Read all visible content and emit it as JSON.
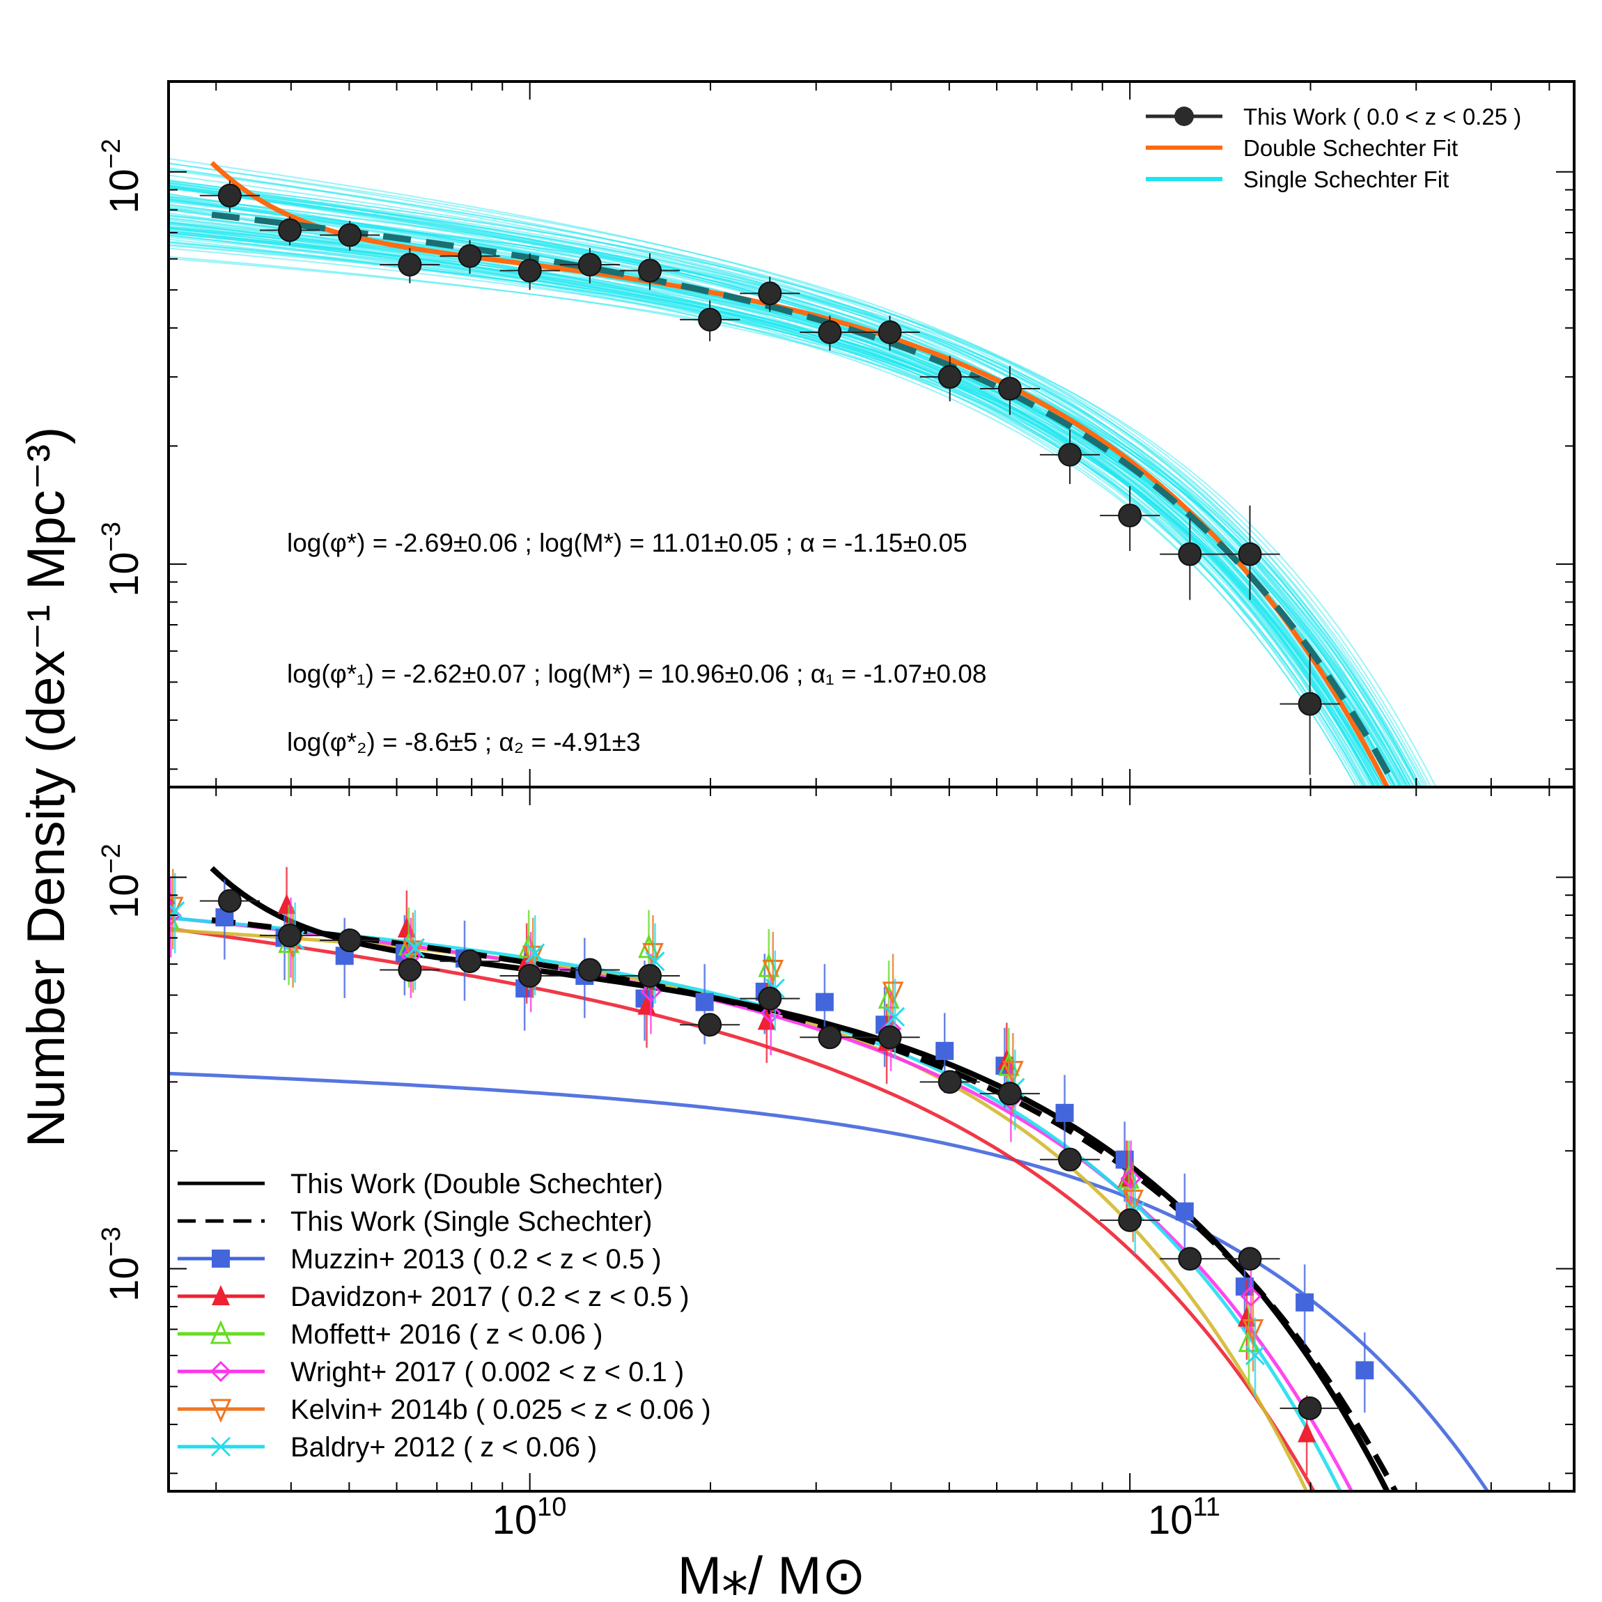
{
  "colors": {
    "this_work": "#2b2b2b",
    "double": "#ff6a12",
    "single": "#1ae6f0",
    "single_dash": "#1a6f73",
    "muzzin": "#4466dd",
    "davidzon": "#ee2233",
    "moffett": "#66dd22",
    "wright": "#ff33ee",
    "kelvin": "#ee7722",
    "baldry": "#22ddee",
    "moffett_line": "#d4b830"
  },
  "chart_data": [
    {
      "type": "line",
      "panel": "top",
      "xscale": "log",
      "yscale": "log",
      "xlim": [
        2500000000.0,
        550000000000.0
      ],
      "ylim": [
        0.00027,
        0.017
      ],
      "ylabel": "Number Density (dex⁻¹ Mpc⁻³)",
      "yticks": [
        {
          "base": "10",
          "exp": "−2",
          "value": 0.01
        },
        {
          "base": "10",
          "exp": "−3",
          "value": 0.001
        }
      ],
      "legend": [
        {
          "label": "This Work ( 0.0 < z < 0.25 )",
          "style": "points"
        },
        {
          "label": "Double Schechter Fit",
          "style": "double"
        },
        {
          "label": "Single Schechter Fit",
          "style": "single"
        }
      ],
      "annotations": [
        {
          "text": "log(φ*) = -2.69±0.06 ; log(M*) = 11.01±0.05 ; α = -1.15±0.05"
        },
        {
          "text": "log(φ*₁) = -2.62±0.07 ; log(M*) = 10.96±0.06 ; α₁ = -1.07±0.08"
        },
        {
          "text": "log(φ*₂) = -8.6±5 ; α₂ = -4.91±3"
        }
      ],
      "fits": {
        "single": {
          "log_phi": -2.69,
          "log_mstar": 11.01,
          "alpha": -1.15
        },
        "double": {
          "log_phi1": -2.62,
          "log_mstar": 10.96,
          "alpha1": -1.07,
          "log_phi2": -8.6,
          "alpha2": -4.91
        }
      },
      "series": [
        {
          "name": "This Work",
          "x_log": [
            9.5,
            9.6,
            9.7,
            9.8,
            9.9,
            10.0,
            10.1,
            10.2,
            10.3,
            10.4,
            10.5,
            10.6,
            10.7,
            10.8,
            10.9,
            11.0,
            11.1,
            11.2,
            11.3
          ],
          "y": [
            0.0087,
            0.0071,
            0.0069,
            0.0058,
            0.0061,
            0.0056,
            0.0058,
            0.0056,
            0.0042,
            0.0049,
            0.0039,
            0.0039,
            0.003,
            0.0028,
            0.0019,
            0.00133,
            0.00106,
            0.00106,
            0.00044
          ],
          "yerr_lo": [
            0.0008,
            0.0006,
            0.0006,
            0.0006,
            0.0006,
            0.0006,
            0.0006,
            0.0006,
            0.0005,
            0.0005,
            0.0004,
            0.0004,
            0.0004,
            0.0004,
            0.0003,
            0.00025,
            0.00025,
            0.00025,
            0.00015
          ],
          "yerr_hi": [
            0.0008,
            0.0006,
            0.0006,
            0.0006,
            0.0006,
            0.0006,
            0.0006,
            0.0006,
            0.0005,
            0.0005,
            0.0004,
            0.0004,
            0.0004,
            0.0004,
            0.0003,
            0.00025,
            0.00025,
            0.00035,
            0.00015
          ]
        }
      ]
    },
    {
      "type": "line",
      "panel": "bottom",
      "xscale": "log",
      "yscale": "log",
      "xlim": [
        2500000000.0,
        550000000000.0
      ],
      "ylim": [
        0.00027,
        0.017
      ],
      "xlabel": "M⁎/ M⊙",
      "xticks": [
        {
          "base": "10",
          "exp": "10",
          "value": 10000000000.0
        },
        {
          "base": "10",
          "exp": "11",
          "value": 100000000000.0
        }
      ],
      "yticks": [
        {
          "base": "10",
          "exp": "−2",
          "value": 0.01
        },
        {
          "base": "10",
          "exp": "−3",
          "value": 0.001
        }
      ],
      "legend": [
        {
          "label": "This Work (Double Schechter)",
          "style": "solid-black"
        },
        {
          "label": "This Work (Single Schechter)",
          "style": "dashed-black"
        },
        {
          "label": "Muzzin+ 2013 ( 0.2 < z < 0.5 )",
          "style": "muzzin"
        },
        {
          "label": "Davidzon+ 2017 ( 0.2 < z < 0.5 )",
          "style": "davidzon"
        },
        {
          "label": "Moffett+ 2016 ( z < 0.06 )",
          "style": "moffett"
        },
        {
          "label": "Wright+ 2017 ( 0.002 < z < 0.1 )",
          "style": "wright"
        },
        {
          "label": "Kelvin+ 2014b ( 0.025 < z < 0.06 )",
          "style": "kelvin"
        },
        {
          "label": "Baldry+ 2012 ( z < 0.06 )",
          "style": "baldry"
        }
      ],
      "series": [
        {
          "name": "This Work",
          "x_log": [
            9.5,
            9.6,
            9.7,
            9.8,
            9.9,
            10.0,
            10.1,
            10.2,
            10.3,
            10.4,
            10.5,
            10.6,
            10.7,
            10.8,
            10.9,
            11.0,
            11.1,
            11.2,
            11.3
          ],
          "y": [
            0.0087,
            0.0071,
            0.0069,
            0.0058,
            0.0061,
            0.0056,
            0.0058,
            0.0056,
            0.0042,
            0.0049,
            0.0039,
            0.0039,
            0.003,
            0.0028,
            0.0019,
            0.00133,
            0.00106,
            0.00106,
            0.00044
          ]
        },
        {
          "name": "Muzzin+ 2013",
          "x_log": [
            9.4,
            9.5,
            9.6,
            9.7,
            9.8,
            9.9,
            10.0,
            10.1,
            10.2,
            10.3,
            10.4,
            10.5,
            10.6,
            10.7,
            10.8,
            10.9,
            11.0,
            11.1,
            11.2,
            11.3,
            11.4
          ],
          "y": [
            0.0082,
            0.0079,
            0.007,
            0.0063,
            0.0064,
            0.0062,
            0.0052,
            0.0056,
            0.0049,
            0.0048,
            0.0051,
            0.0048,
            0.0042,
            0.0036,
            0.0033,
            0.0025,
            0.0019,
            0.0014,
            0.0009,
            0.00082,
            0.00055
          ]
        },
        {
          "name": "Davidzon+ 2017",
          "x_log": [
            9.4,
            9.6,
            9.8,
            10.0,
            10.2,
            10.4,
            10.6,
            10.8,
            11.0,
            11.2,
            11.3
          ],
          "y": [
            0.009,
            0.0085,
            0.0074,
            0.0061,
            0.0047,
            0.0043,
            0.0038,
            0.0034,
            0.0017,
            0.00075,
            0.00038
          ]
        },
        {
          "name": "Moffett+ 2016",
          "x_log": [
            9.4,
            9.6,
            9.8,
            10.0,
            10.2,
            10.4,
            10.6,
            10.8,
            11.0,
            11.2
          ],
          "y": [
            0.0078,
            0.0068,
            0.0067,
            0.0066,
            0.0066,
            0.0059,
            0.0049,
            0.0033,
            0.0017,
            0.00065
          ]
        },
        {
          "name": "Wright+ 2017",
          "x_log": [
            9.4,
            9.6,
            9.8,
            10.0,
            10.2,
            10.4,
            10.6,
            10.8,
            11.0,
            11.2
          ],
          "y": [
            0.008,
            0.0071,
            0.0063,
            0.0058,
            0.0051,
            0.0045,
            0.0041,
            0.0027,
            0.0017,
            0.00085
          ]
        },
        {
          "name": "Kelvin+ 2014b",
          "x_log": [
            9.4,
            9.6,
            9.8,
            10.0,
            10.2,
            10.4,
            10.6,
            10.8,
            11.0,
            11.2
          ],
          "y": [
            0.0084,
            0.0067,
            0.0065,
            0.0063,
            0.0064,
            0.0058,
            0.0051,
            0.0032,
            0.0015,
            0.0007
          ]
        },
        {
          "name": "Baldry+ 2012",
          "x_log": [
            9.4,
            9.6,
            9.8,
            10.0,
            10.2,
            10.4,
            10.6,
            10.8,
            11.0,
            11.2
          ],
          "y": [
            0.0082,
            0.0069,
            0.0066,
            0.0064,
            0.0061,
            0.0052,
            0.0044,
            0.0029,
            0.0014,
            0.0006
          ]
        }
      ]
    }
  ]
}
